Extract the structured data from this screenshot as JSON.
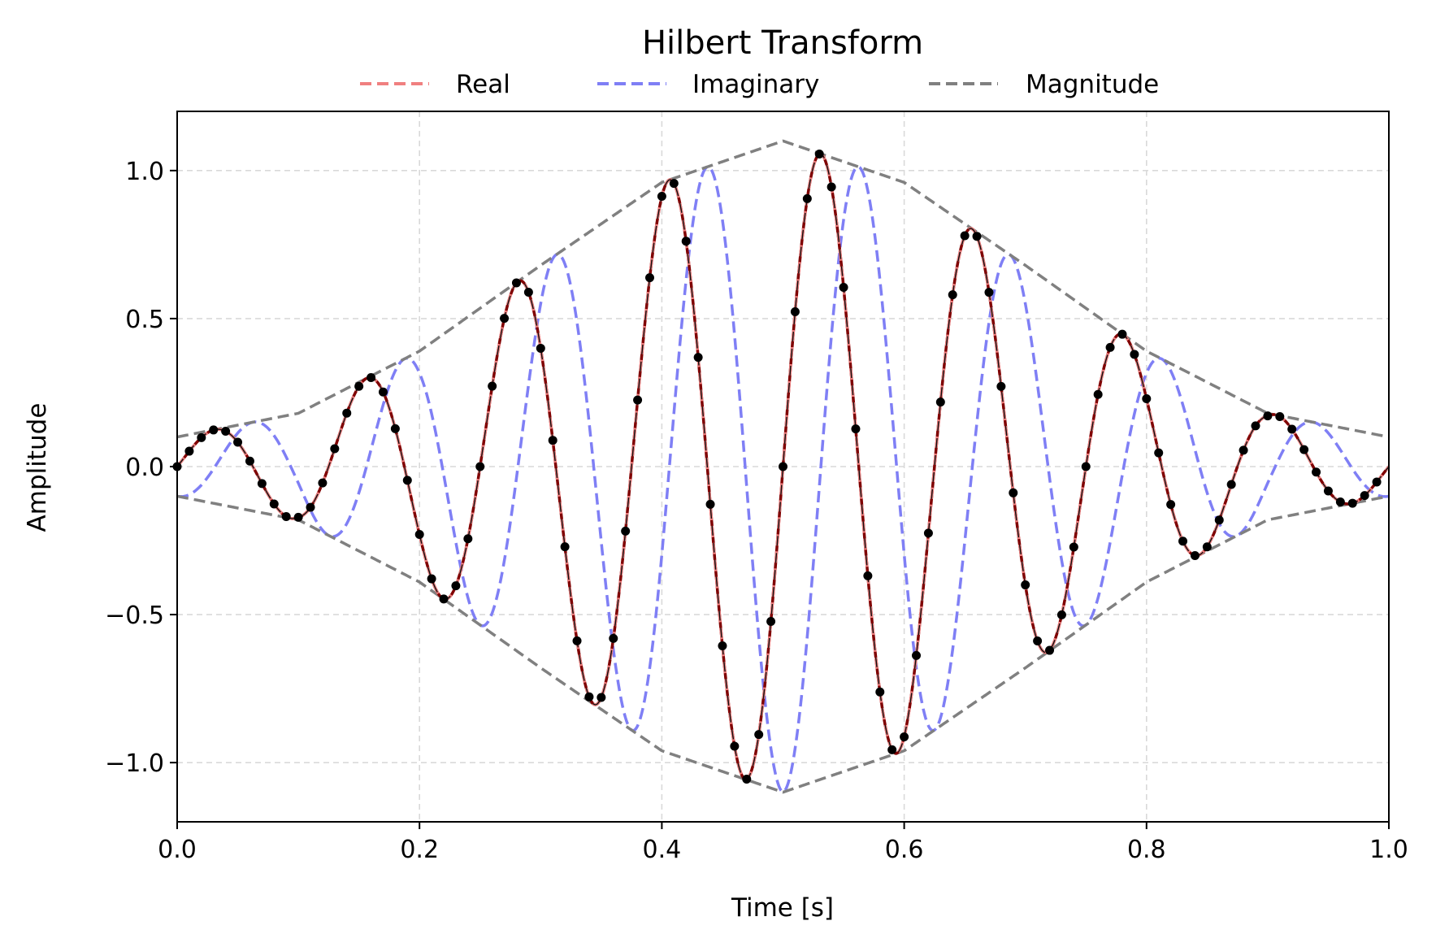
{
  "chart_data": {
    "type": "line",
    "title": "Hilbert Transform",
    "xlabel": "Time [s]",
    "ylabel": "Amplitude",
    "xlim": [
      0.0,
      1.0
    ],
    "ylim": [
      -1.2,
      1.2
    ],
    "xticks": [
      0.0,
      0.2,
      0.4,
      0.6,
      0.8,
      1.0
    ],
    "xtick_labels": [
      "0.0",
      "0.2",
      "0.4",
      "0.6",
      "0.8",
      "1.0"
    ],
    "yticks": [
      -1.0,
      -0.5,
      0.0,
      0.5,
      1.0
    ],
    "ytick_labels": [
      "−1.0",
      "−0.5",
      "0.0",
      "0.5",
      "1.0"
    ],
    "grid": true,
    "legend_position": "top-center, outside plot, 3 columns",
    "carrier_frequency_hz": 8,
    "sample_interval_s": 0.01,
    "envelope": {
      "t": [
        0.0,
        0.1,
        0.2,
        0.3,
        0.4,
        0.5,
        0.6,
        0.7,
        0.8,
        0.9,
        1.0
      ],
      "magnitude": [
        0.1,
        0.18,
        0.39,
        0.68,
        0.96,
        1.1,
        0.96,
        0.68,
        0.39,
        0.18,
        0.1
      ]
    },
    "series": [
      {
        "name": "Real",
        "color": "#f08080",
        "style": "dashed"
      },
      {
        "name": "Imaginary",
        "color": "#7f7ff5",
        "style": "dashed"
      },
      {
        "name": "Magnitude",
        "color": "#808080",
        "style": "dashed"
      }
    ],
    "overlay": {
      "sampled_line_color": "#800000",
      "marker_color": "#000000"
    }
  }
}
